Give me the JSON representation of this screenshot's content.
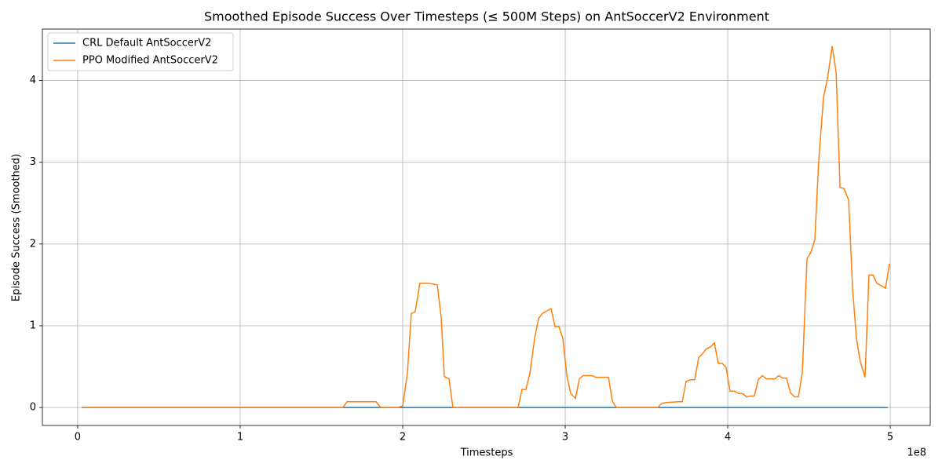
{
  "chart_data": {
    "type": "line",
    "title": "Smoothed Episode Success Over Timesteps (≤ 500M Steps) on AntSoccerV2 Environment",
    "x_label": "Timesteps",
    "y_label": "Episode Success (Smoothed)",
    "x_offset_label": "1e8",
    "xlim": [
      -21700000,
      524600000
    ],
    "ylim": [
      -0.22,
      4.63
    ],
    "xticks": [
      {
        "value": 0,
        "label": "0"
      },
      {
        "value": 100000000,
        "label": "1"
      },
      {
        "value": 200000000,
        "label": "2"
      },
      {
        "value": 300000000,
        "label": "3"
      },
      {
        "value": 400000000,
        "label": "4"
      },
      {
        "value": 500000000,
        "label": "5"
      }
    ],
    "yticks": [
      0,
      1,
      2,
      3,
      4
    ],
    "grid": true,
    "legend": "upper left",
    "series": [
      {
        "name": "CRL Default AntSoccerV2",
        "color": "#1f77b4",
        "x": [
          2500000,
          498500000
        ],
        "values": [
          0,
          0
        ]
      },
      {
        "name": "PPO Modified AntSoccerV2",
        "color": "#ff7f0e",
        "x": [
          2500000,
          163300000,
          165700000,
          183600000,
          186500000,
          197100000,
          200000000,
          202900000,
          205300000,
          207700000,
          210600000,
          215900000,
          221300000,
          223700000,
          225600000,
          228500000,
          230900000,
          271000000,
          273400000,
          275800000,
          278300000,
          281200000,
          283600000,
          286000000,
          291300000,
          293700000,
          296100000,
          298600000,
          301000000,
          303400000,
          306300000,
          308700000,
          311100000,
          316400000,
          318800000,
          326600000,
          329000000,
          331400000,
          357000000,
          359400000,
          361800000,
          369600000,
          372000000,
          374400000,
          377300000,
          379700000,
          382100000,
          384500000,
          387000000,
          389400000,
          391800000,
          394200000,
          396600000,
          399000000,
          401400000,
          404300000,
          406800000,
          409200000,
          411600000,
          414000000,
          416400000,
          418800000,
          421300000,
          423700000,
          429000000,
          431400000,
          433800000,
          436200000,
          438600000,
          441100000,
          443500000,
          445900000,
          448800000,
          451200000,
          453600000,
          456000000,
          458900000,
          461400000,
          464300000,
          466700000,
          469100000,
          471500000,
          474400000,
          476800000,
          479200000,
          481600000,
          484500000,
          486900000,
          489400000,
          491800000,
          497100000,
          499500000
        ],
        "values": [
          0,
          0,
          0.07,
          0.07,
          0,
          0,
          0.02,
          0.42,
          1.15,
          1.17,
          1.52,
          1.52,
          1.5,
          1.1,
          0.38,
          0.35,
          0,
          0,
          0.22,
          0.22,
          0.42,
          0.85,
          1.09,
          1.15,
          1.21,
          0.99,
          0.99,
          0.84,
          0.39,
          0.17,
          0.11,
          0.35,
          0.39,
          0.39,
          0.37,
          0.37,
          0.08,
          0,
          0,
          0.05,
          0.06,
          0.07,
          0.07,
          0.32,
          0.34,
          0.34,
          0.61,
          0.66,
          0.72,
          0.74,
          0.79,
          0.54,
          0.54,
          0.49,
          0.2,
          0.2,
          0.17,
          0.17,
          0.13,
          0.14,
          0.14,
          0.34,
          0.39,
          0.35,
          0.35,
          0.39,
          0.36,
          0.36,
          0.18,
          0.13,
          0.13,
          0.43,
          1.82,
          1.9,
          2.05,
          3.02,
          3.79,
          4.03,
          4.42,
          4.1,
          2.69,
          2.68,
          2.54,
          1.46,
          0.84,
          0.56,
          0.37,
          1.62,
          1.62,
          1.52,
          1.46,
          1.76
        ]
      }
    ]
  }
}
